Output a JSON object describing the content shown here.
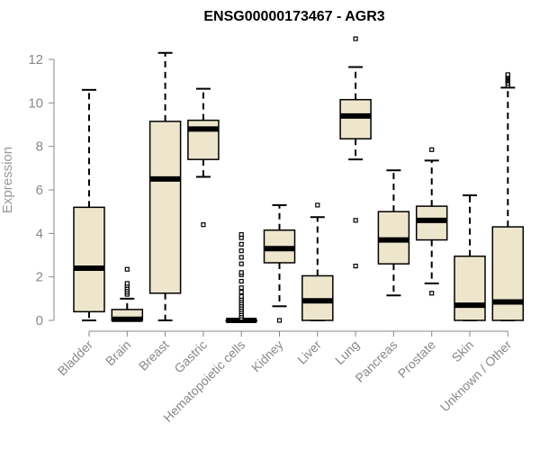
{
  "chart_data": {
    "type": "box",
    "title": "ENSG00000173467 - AGR3",
    "xlabel": "",
    "ylabel": "Expression",
    "ylim": [
      0,
      12.6
    ],
    "yticks": [
      0,
      2,
      4,
      6,
      8,
      10,
      12
    ],
    "box_fill": "#ede6cd",
    "categories": [
      "Bladder",
      "Brain",
      "Breast",
      "Gastric",
      "Hematopoietic cells",
      "Kidney",
      "Liver",
      "Lung",
      "Pancreas",
      "Prostate",
      "Skin",
      "Unknown / Other"
    ],
    "boxes": [
      {
        "min": 0.0,
        "q1": 0.4,
        "median": 2.4,
        "q3": 5.2,
        "max": 10.6,
        "outliers": []
      },
      {
        "min": 0.0,
        "q1": 0.0,
        "median": 0.05,
        "q3": 0.5,
        "max": 1.0,
        "outliers": [
          1.2,
          1.3,
          1.4,
          1.5,
          1.6,
          1.7,
          2.35
        ]
      },
      {
        "min": 0.0,
        "q1": 1.25,
        "median": 6.5,
        "q3": 9.15,
        "max": 12.3,
        "outliers": []
      },
      {
        "min": 6.6,
        "q1": 7.4,
        "median": 8.8,
        "q3": 9.2,
        "max": 10.65,
        "outliers": [
          4.4
        ]
      },
      {
        "min": 0.0,
        "q1": 0.0,
        "median": 0.0,
        "q3": 0.0,
        "max": 0.0,
        "outliers": [
          0.1,
          0.2,
          0.3,
          0.4,
          0.5,
          0.6,
          0.7,
          0.8,
          0.9,
          1.0,
          1.1,
          1.3,
          1.5,
          1.8,
          2.1,
          2.2,
          2.6,
          2.9,
          3.2,
          3.5,
          3.8,
          3.95
        ]
      },
      {
        "min": 0.65,
        "q1": 2.65,
        "median": 3.3,
        "q3": 4.15,
        "max": 5.3,
        "outliers": [
          0.0
        ]
      },
      {
        "min": 0.0,
        "q1": 0.0,
        "median": 0.9,
        "q3": 2.05,
        "max": 4.75,
        "outliers": [
          5.3
        ]
      },
      {
        "min": 7.4,
        "q1": 8.35,
        "median": 9.4,
        "q3": 10.15,
        "max": 11.65,
        "outliers": [
          12.95,
          4.6,
          2.5
        ]
      },
      {
        "min": 1.15,
        "q1": 2.6,
        "median": 3.7,
        "q3": 5.0,
        "max": 6.9,
        "outliers": []
      },
      {
        "min": 1.7,
        "q1": 3.7,
        "median": 4.6,
        "q3": 5.25,
        "max": 7.35,
        "outliers": [
          7.85,
          1.25
        ]
      },
      {
        "min": 0.0,
        "q1": 0.0,
        "median": 0.7,
        "q3": 2.95,
        "max": 5.75,
        "outliers": []
      },
      {
        "min": 0.0,
        "q1": 0.0,
        "median": 0.85,
        "q3": 4.3,
        "max": 10.7,
        "outliers": [
          10.8,
          10.9,
          11.0,
          11.05,
          11.1,
          11.15,
          11.2,
          11.25,
          11.3
        ]
      }
    ]
  }
}
